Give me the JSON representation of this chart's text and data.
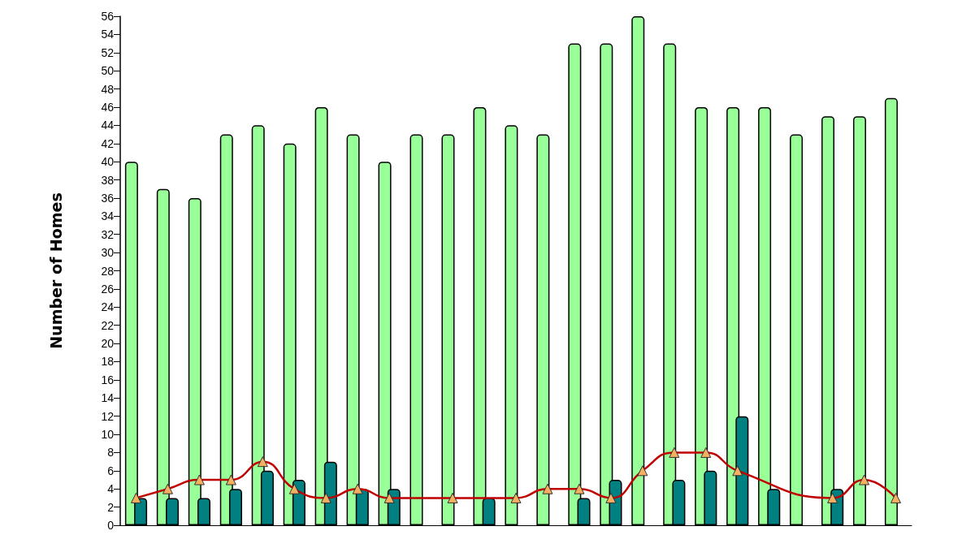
{
  "chart_data": {
    "type": "bar",
    "ylabel": "Number of Homes",
    "categories": [
      null,
      null,
      null,
      null,
      null,
      null,
      null,
      null,
      null,
      null,
      null,
      null,
      null,
      null,
      null,
      null,
      null,
      null,
      null,
      null,
      null,
      null,
      null,
      null,
      null
    ],
    "series": [
      {
        "color": "#99ff99",
        "values": [
          40,
          37,
          36,
          43,
          44,
          42,
          46,
          43,
          40,
          43,
          43,
          46,
          44,
          43,
          53,
          53,
          56,
          53,
          46,
          46,
          46,
          43,
          45,
          45,
          47
        ]
      },
      {
        "color": "#008080",
        "values": [
          3,
          3,
          3,
          4,
          6,
          5,
          7,
          4,
          4,
          null,
          null,
          3,
          null,
          null,
          3,
          5,
          null,
          5,
          6,
          12,
          4,
          null,
          4,
          null,
          null
        ]
      },
      {
        "type": "line",
        "color": "#c00000",
        "values": [
          3,
          4,
          5,
          5,
          7,
          4,
          3,
          4,
          3,
          null,
          3,
          null,
          3,
          4,
          4,
          3,
          6,
          8,
          8,
          6,
          null,
          null,
          3,
          5,
          3
        ]
      }
    ],
    "marker": "triangle",
    "ylim": [
      0,
      56
    ],
    "yticks": [
      0,
      2,
      4,
      6,
      8,
      10,
      12,
      14,
      16,
      18,
      20,
      22,
      24,
      26,
      28,
      30,
      32,
      34,
      36,
      38,
      40,
      42,
      44,
      46,
      48,
      50,
      52,
      54,
      56
    ],
    "grid": false
  }
}
